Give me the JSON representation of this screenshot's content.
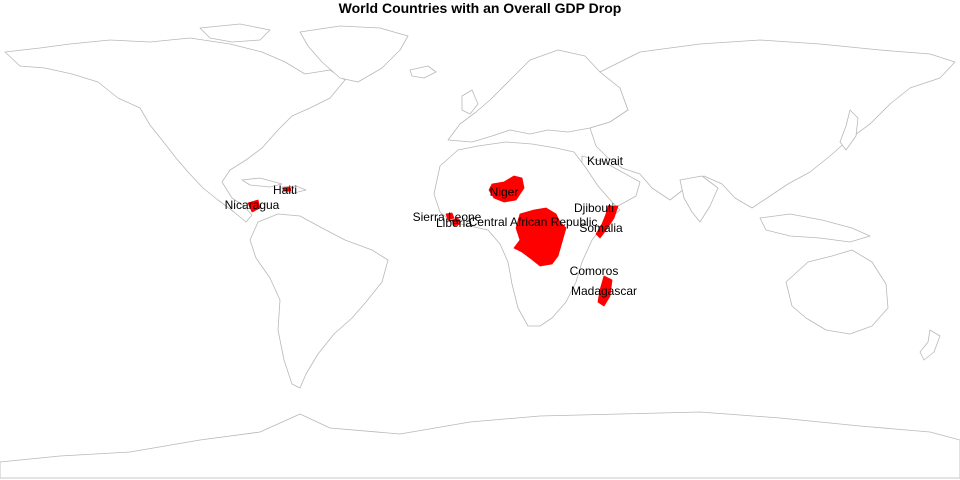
{
  "title": "World Countries with an Overall GDP Drop",
  "highlight_color": "#ff0000",
  "border_color": "#b8b8b8",
  "countries": [
    {
      "name": "Haiti"
    },
    {
      "name": "Nicaragua"
    },
    {
      "name": "Niger"
    },
    {
      "name": "Kuwait"
    },
    {
      "name": "Sierra Leone"
    },
    {
      "name": "Liberia"
    },
    {
      "name": "Central African Republic"
    },
    {
      "name": "Djibouti"
    },
    {
      "name": "Somalia"
    },
    {
      "name": "Comoros"
    },
    {
      "name": "Madagascar"
    }
  ]
}
